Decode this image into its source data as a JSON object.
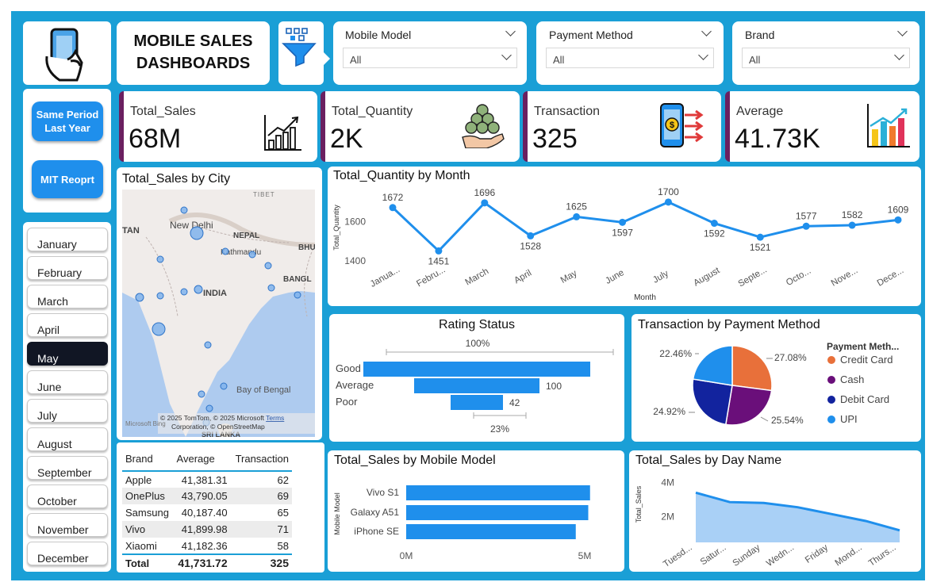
{
  "header": {
    "title_line1": "MOBILE SALES",
    "title_line2": "DASHBOARDS"
  },
  "icons": {
    "logo": "phone-in-hand-icon",
    "filter": "funnel-filter-icon"
  },
  "nav_buttons": [
    {
      "label_line1": "Same Period",
      "label_line2": "Last Year"
    },
    {
      "label": "MIT Reoprt"
    }
  ],
  "filters": [
    {
      "title": "Mobile Model",
      "value": "All"
    },
    {
      "title": "Payment Method",
      "value": "All"
    },
    {
      "title": "Brand",
      "value": "All"
    }
  ],
  "months": [
    "January",
    "February",
    "March",
    "April",
    "May",
    "June",
    "July",
    "August",
    "September",
    "October",
    "November",
    "December"
  ],
  "selected_month": "May",
  "kpis": [
    {
      "title": "Total_Sales",
      "value": "68M",
      "icon": "bar-chart-growth-icon"
    },
    {
      "title": "Total_Quantity",
      "value": "2K",
      "icon": "coins-stack-icon"
    },
    {
      "title": "Transaction",
      "value": "325",
      "icon": "mobile-payment-icon"
    },
    {
      "title": "Average",
      "value": "41.73K",
      "icon": "colorful-bars-icon"
    }
  ],
  "colors": {
    "accent": "#1a9fd6",
    "series": "#1f8fec",
    "kpi_bar": "#6b2060",
    "credit": "#e8703a",
    "cash": "#6a0f7a",
    "debit": "#12239e",
    "upi": "#1f8fec",
    "selected_month_bg": "#111624"
  },
  "map": {
    "title": "Total_Sales by City",
    "labels": {
      "tibet": "TIBET",
      "tan": "TAN",
      "new_delhi": "New Delhi",
      "nepal": "NEPAL",
      "kathmandu": "Kathmandu",
      "bhu": "BHU",
      "bangl": "BANGL",
      "india": "INDIA",
      "bay": "Bay of Bengal",
      "sri_lanka": "SRI LANKA"
    },
    "attribution_line1": "© 2025 TomTom, © 2025 Microsoft",
    "terms": "Terms",
    "attribution_line2": "Corporation, © OpenStreetMap",
    "bing": "Microsoft Bing"
  },
  "table": {
    "headers": [
      "Brand",
      "Average",
      "Transaction"
    ],
    "rows": [
      [
        "Apple",
        "41,381.31",
        "62"
      ],
      [
        "OnePlus",
        "43,790.05",
        "69"
      ],
      [
        "Samsung",
        "40,187.40",
        "65"
      ],
      [
        "Vivo",
        "41,899.98",
        "71"
      ],
      [
        "Xiaomi",
        "41,182.36",
        "58"
      ]
    ],
    "total": [
      "Total",
      "41,731.72",
      "325"
    ]
  },
  "chart_data": [
    {
      "type": "line",
      "title": "Total_Quantity by Month",
      "xlabel": "Month",
      "ylabel": "Total_Quantity",
      "categories": [
        "Janua...",
        "Febru...",
        "March",
        "April",
        "May",
        "June",
        "July",
        "August",
        "Septe...",
        "Octo...",
        "Nove...",
        "Dece..."
      ],
      "values": [
        1672,
        1451,
        1696,
        1528,
        1625,
        1597,
        1700,
        1592,
        1521,
        1577,
        1582,
        1609
      ],
      "yticks": [
        "1400",
        "1600"
      ],
      "ylim": [
        1380,
        1760
      ]
    },
    {
      "type": "bar",
      "title": "Rating Status",
      "categories": [
        "Good",
        "Average",
        "Poor"
      ],
      "values": [
        null,
        100,
        42
      ],
      "labels": [
        "",
        "100",
        "42"
      ],
      "top_label": "100%",
      "bottom_label": "23%"
    },
    {
      "type": "pie",
      "title": "Transaction by Payment Method",
      "legend_title": "Payment Meth...",
      "categories": [
        "Credit Card",
        "Cash",
        "Debit Card",
        "UPI"
      ],
      "values": [
        27.08,
        25.54,
        24.92,
        22.46
      ],
      "labels": [
        "27.08%",
        "25.54%",
        "24.92%",
        "22.46%"
      ]
    },
    {
      "type": "bar",
      "title": "Total_Sales by Mobile Model",
      "ylabel": "Mobile Model",
      "categories": [
        "Vivo S1",
        "Galaxy A51",
        "iPhone SE"
      ],
      "values": [
        5.15,
        5.1,
        4.75
      ],
      "xticks": [
        "0M",
        "5M"
      ],
      "xlim": [
        0,
        5.6
      ]
    },
    {
      "type": "area",
      "title": "Total_Sales by Day Name",
      "ylabel": "Total_Sales",
      "categories": [
        "Tuesd...",
        "Satur...",
        "Sunday",
        "Wedn...",
        "Friday",
        "Mond...",
        "Thurs..."
      ],
      "values": [
        3.4,
        2.85,
        2.8,
        2.55,
        2.15,
        1.75,
        1.2
      ],
      "yticks": [
        "2M",
        "4M"
      ],
      "ylim": [
        0.5,
        4.2
      ]
    }
  ]
}
